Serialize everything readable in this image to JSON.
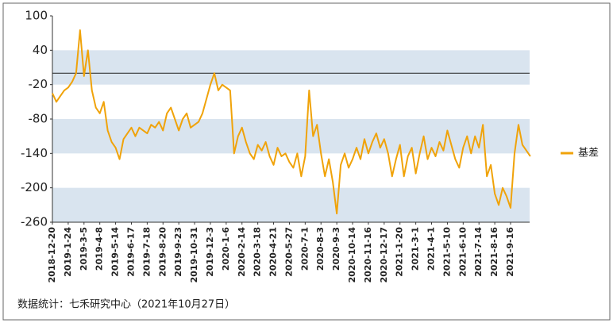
{
  "chart_data": {
    "type": "line",
    "footer": "数据统计：七禾研究中心（2021年10月27日）",
    "categories": [
      "2018-12-20",
      null,
      null,
      null,
      "2019-1-24",
      null,
      null,
      null,
      "2019-3-5",
      null,
      null,
      null,
      "2019-4-8",
      null,
      null,
      null,
      "2019-5-14",
      null,
      null,
      null,
      "2019-6-17",
      null,
      null,
      null,
      "2019-7-18",
      null,
      null,
      null,
      "2019-8-20",
      null,
      null,
      null,
      "2019-9-23",
      null,
      null,
      null,
      "2019-10-31",
      null,
      null,
      null,
      "2019-12-3",
      null,
      null,
      null,
      "2020-1-6",
      null,
      null,
      null,
      "2020-2-14",
      null,
      null,
      null,
      "2020-3-18",
      null,
      null,
      null,
      "2020-4-21",
      null,
      null,
      null,
      "2020-5-27",
      null,
      null,
      null,
      "2020-7-1",
      null,
      null,
      null,
      "2020-8-3",
      null,
      null,
      null,
      "2020-9-3",
      null,
      null,
      null,
      "2020-10-14",
      null,
      null,
      null,
      "2020-11-16",
      null,
      null,
      null,
      "2020-12-17",
      null,
      null,
      null,
      "2021-1-20",
      null,
      null,
      null,
      "2021-3-1",
      null,
      null,
      null,
      "2021-4-1",
      null,
      null,
      null,
      "2021-5-10",
      null,
      null,
      null,
      "2021-6-10",
      null,
      null,
      null,
      "2021-7-14",
      null,
      null,
      null,
      "2021-8-16",
      null,
      null,
      null,
      "2021-9-16",
      null,
      null,
      null,
      null,
      null
    ],
    "series": [
      {
        "name": "基差",
        "color": "#f0a30a",
        "values": [
          -35,
          -50,
          -40,
          -30,
          -25,
          -15,
          0,
          75,
          -5,
          40,
          -30,
          -60,
          -70,
          -50,
          -100,
          -120,
          -130,
          -150,
          -115,
          -105,
          -95,
          -110,
          -95,
          -100,
          -105,
          -90,
          -95,
          -85,
          -100,
          -70,
          -60,
          -80,
          -100,
          -80,
          -70,
          -95,
          -90,
          -85,
          -70,
          -45,
          -20,
          0,
          -30,
          -20,
          -25,
          -30,
          -140,
          -110,
          -95,
          -120,
          -140,
          -150,
          -125,
          -135,
          -120,
          -145,
          -160,
          -130,
          -145,
          -140,
          -155,
          -165,
          -140,
          -180,
          -145,
          -30,
          -110,
          -90,
          -140,
          -180,
          -150,
          -190,
          -245,
          -160,
          -140,
          -165,
          -150,
          -130,
          -150,
          -115,
          -140,
          -120,
          -105,
          -130,
          -115,
          -140,
          -180,
          -150,
          -125,
          -180,
          -145,
          -130,
          -175,
          -140,
          -110,
          -150,
          -130,
          -145,
          -120,
          -135,
          -100,
          -125,
          -150,
          -165,
          -130,
          -110,
          -140,
          -110,
          -130,
          -90,
          -180,
          -160,
          -210,
          -230,
          -200,
          -215,
          -235,
          -140,
          -90,
          -125,
          -135,
          -145
        ]
      }
    ],
    "ylim": [
      -260,
      100
    ],
    "yticks": [
      100,
      40,
      -20,
      -80,
      -140,
      -200,
      -260
    ],
    "bands": [
      [
        40,
        -20
      ],
      [
        -80,
        -140
      ],
      [
        -200,
        -260
      ]
    ],
    "band_color": "#d9e4ef",
    "hline": 0,
    "legend": "right"
  }
}
